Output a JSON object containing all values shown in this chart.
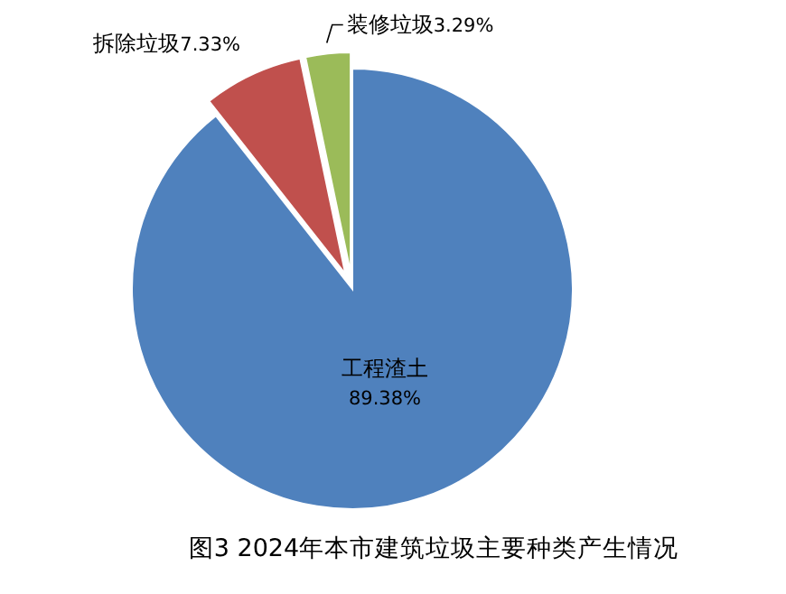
{
  "chart_data": {
    "type": "pie",
    "title": "图3    2024年本市建筑垃圾主要种类产生情况",
    "categories": [
      "工程渣土",
      "拆除垃圾",
      "装修垃圾"
    ],
    "values": [
      89.38,
      7.33,
      3.29
    ],
    "value_labels": [
      "89.38%",
      "7.33%",
      "3.29%"
    ],
    "colors": [
      "#4f81bd",
      "#c0504d",
      "#9bbb59"
    ]
  }
}
